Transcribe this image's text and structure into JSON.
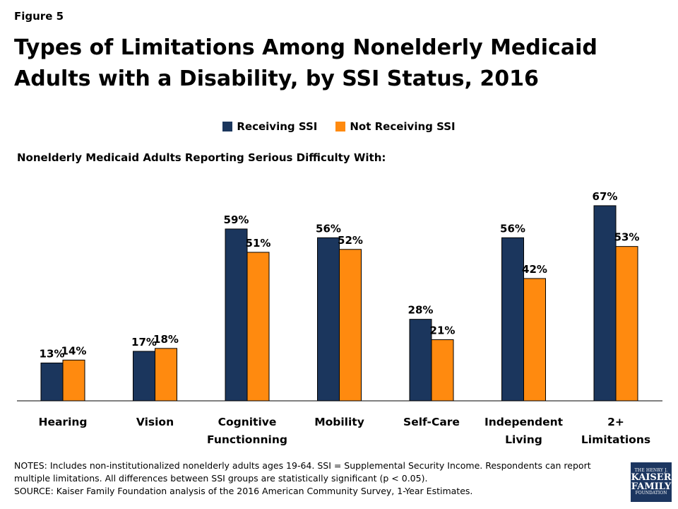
{
  "figure_label": "Figure 5",
  "title": "Types of Limitations Among Nonelderly Medicaid Adults with a Disability, by SSI Status, 2016",
  "subtitle": "Nonelderly Medicaid Adults Reporting Serious Difficulty With:",
  "colors": {
    "receiving": "#1b365d",
    "not_receiving": "#ff8a0f"
  },
  "chart_data": {
    "type": "bar",
    "categories": [
      "Hearing",
      "Vision",
      "Cognitive Functionning",
      "Mobility",
      "Self-Care",
      "Independent Living",
      "2+ Limitations"
    ],
    "series": [
      {
        "name": "Receiving SSI",
        "values": [
          13,
          17,
          59,
          56,
          28,
          56,
          67
        ],
        "labels": [
          "13%",
          "17%",
          "59%",
          "56%",
          "28%",
          "56%",
          "67%"
        ]
      },
      {
        "name": "Not Receiving SSI",
        "values": [
          14,
          18,
          51,
          52,
          21,
          42,
          53
        ],
        "labels": [
          "14%",
          "18%",
          "51%",
          "52%",
          "21%",
          "42%",
          "53%"
        ]
      }
    ],
    "ylim": [
      0,
      75
    ],
    "legend": "top-center",
    "grid": false
  },
  "notes": {
    "line1": "NOTES: Includes non-institutionalized nonelderly adults ages 19-64. SSI = Supplemental Security Income. Respondents can report",
    "line2": "multiple limitations. All differences between SSI groups are statistically significant (p < 0.05).",
    "line3": "SOURCE: Kaiser Family Foundation analysis of the 2016 American Community Survey, 1-Year Estimates."
  },
  "logo": {
    "line1": "THE HENRY J.",
    "line2": "KAISER",
    "line3": "FAMILY",
    "line4": "FOUNDATION"
  }
}
